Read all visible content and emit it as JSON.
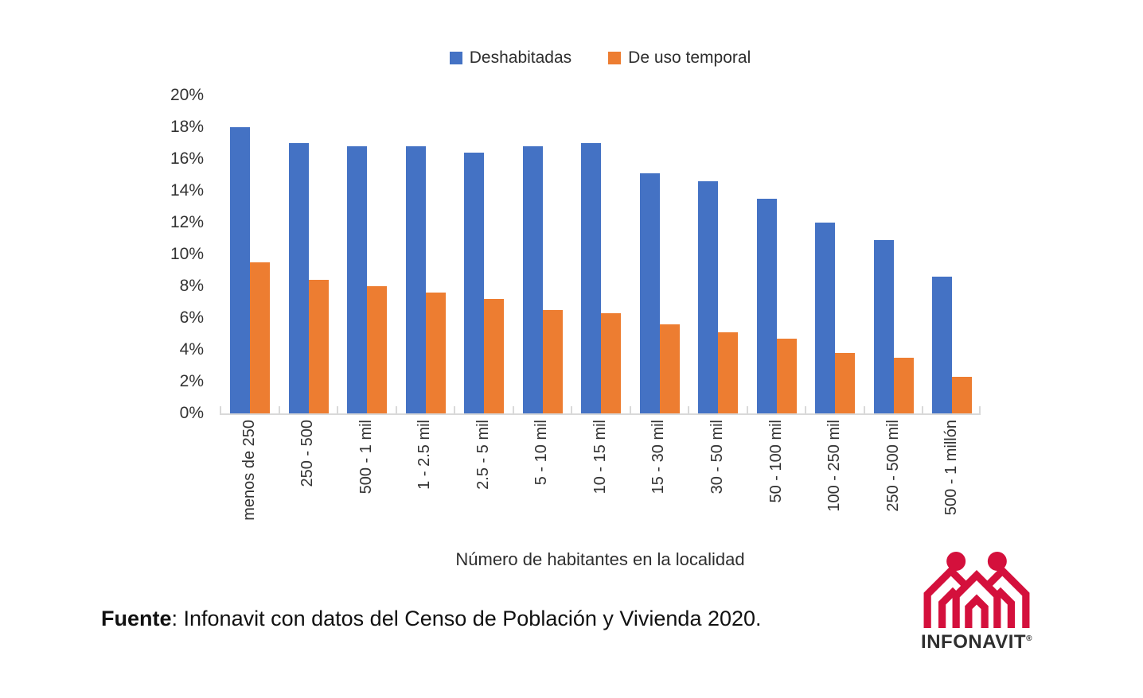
{
  "legend": {
    "items": [
      {
        "label": "Deshabitadas",
        "color": "#4472C4"
      },
      {
        "label": "De uso temporal",
        "color": "#ED7D31"
      }
    ]
  },
  "chart_data": {
    "type": "bar",
    "title": "",
    "categories": [
      "menos de 250",
      "250 - 500",
      "500 - 1 mil",
      "1 - 2.5 mil",
      "2.5 - 5 mil",
      "5 - 10 mil",
      "10 - 15 mil",
      "15 - 30 mil",
      "30 - 50 mil",
      "50 - 100 mil",
      "100 - 250 mil",
      "250 - 500 mil",
      "500 - 1 millón"
    ],
    "series": [
      {
        "name": "Deshabitadas",
        "color": "#4472C4",
        "values": [
          18.0,
          17.0,
          16.8,
          16.8,
          16.4,
          16.8,
          17.0,
          15.1,
          14.6,
          13.5,
          12.0,
          10.9,
          8.6
        ]
      },
      {
        "name": "De uso temporal",
        "color": "#ED7D31",
        "values": [
          9.5,
          8.4,
          8.0,
          7.6,
          7.2,
          6.5,
          6.3,
          5.6,
          5.1,
          4.7,
          3.8,
          3.5,
          2.3
        ]
      }
    ],
    "xlabel": "Número de habitantes en la localidad",
    "ylabel": "",
    "ylim": [
      0,
      20
    ],
    "ytick_step": 2,
    "yticks": [
      "20%",
      "18%",
      "16%",
      "14%",
      "12%",
      "10%",
      "8%",
      "6%",
      "4%",
      "2%",
      "0%"
    ],
    "grid": false,
    "legend_position": "top-center",
    "axis_color": "#D9D9D9"
  },
  "source": {
    "label_bold": "Fuente",
    "rest": ": Infonavit con datos del Censo de Población y Vivienda 2020."
  },
  "logo": {
    "name": "INFONAVIT",
    "registered": "®",
    "color": "#D4103C"
  }
}
